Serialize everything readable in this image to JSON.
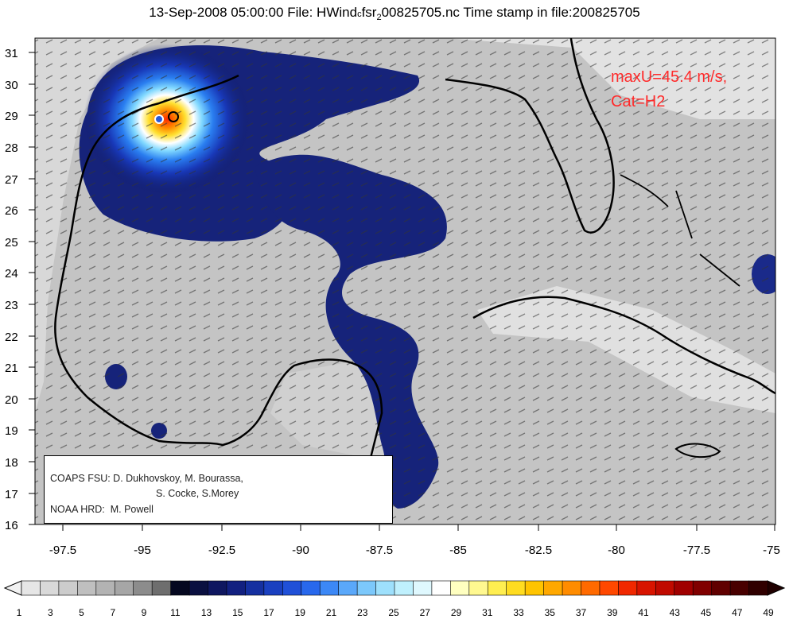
{
  "title": {
    "date": "13-Sep-2008 05:00:00",
    "file_prefix": "File: HWind",
    "file_sub": "c",
    "file_mid": "fsr",
    "file_sup": "2",
    "file_suffix": "00825705.nc",
    "timestamp": "Time stamp in file:200825705"
  },
  "axes": {
    "y_ticks": [
      "16",
      "17",
      "18",
      "19",
      "20",
      "21",
      "22",
      "23",
      "24",
      "25",
      "26",
      "27",
      "28",
      "29",
      "30",
      "31"
    ],
    "x_ticks": [
      "-97.5",
      "-95",
      "-92.5",
      "-90",
      "-87.5",
      "-85",
      "-82.5",
      "-80",
      "-77.5",
      "-75"
    ]
  },
  "annotation": {
    "line1": "maxU=45.4 m/s,",
    "line2": "Cat=H2"
  },
  "credits": {
    "line1": "COAPS FSU: D. Dukhovskoy, M. Bourassa,",
    "line2": "S. Cocke, S.Morey",
    "line3": "NOAA HRD:  M. Powell"
  },
  "colorbar": {
    "labels": [
      "1",
      "3",
      "5",
      "7",
      "9",
      "11",
      "13",
      "15",
      "17",
      "19",
      "21",
      "23",
      "25",
      "27",
      "29",
      "31",
      "33",
      "35",
      "37",
      "39",
      "41",
      "43",
      "45",
      "47",
      "49"
    ],
    "colors": [
      "#e6e6e6",
      "#d9d9d9",
      "#cccccc",
      "#bfbfbf",
      "#b3b3b3",
      "#a6a6a6",
      "#8c8c8c",
      "#6e6e6e",
      "#050820",
      "#0a1040",
      "#0f1760",
      "#122080",
      "#1530a0",
      "#1a40c0",
      "#2050d8",
      "#2868ec",
      "#3c88f6",
      "#5aa8fa",
      "#7cc8fb",
      "#9ee0fc",
      "#bff0fd",
      "#dff8fe",
      "#ffffff",
      "#ffffc0",
      "#fff890",
      "#ffee50",
      "#ffdc20",
      "#ffc400",
      "#ffa800",
      "#ff8c00",
      "#ff6a00",
      "#ff4800",
      "#f02800",
      "#d81400",
      "#c00a00",
      "#a00000",
      "#800000",
      "#600000",
      "#480000",
      "#300000"
    ]
  },
  "colors": {
    "annotation": "#ff2b2b",
    "ocean_low": "#c8c8c8",
    "wind_core": "#1a2a8a"
  }
}
